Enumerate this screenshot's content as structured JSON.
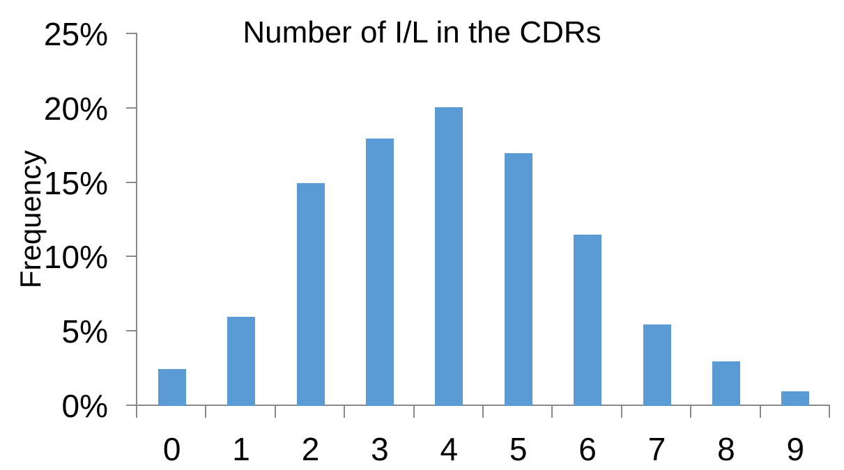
{
  "chart_data": {
    "type": "bar",
    "title": "Number of I/L in the CDRs",
    "xlabel": "",
    "ylabel": "Frequency",
    "categories": [
      "0",
      "1",
      "2",
      "3",
      "4",
      "5",
      "6",
      "7",
      "8",
      "9"
    ],
    "values": [
      2.5,
      6,
      15,
      18,
      20.1,
      17,
      11.5,
      5.5,
      3,
      1
    ],
    "value_unit": "percent",
    "ylim": [
      0,
      25
    ],
    "yticks": [
      {
        "value": 0,
        "label": "0%"
      },
      {
        "value": 5,
        "label": "5%"
      },
      {
        "value": 10,
        "label": "10%"
      },
      {
        "value": 15,
        "label": "15%"
      },
      {
        "value": 20,
        "label": "20%"
      },
      {
        "value": 25,
        "label": "25%"
      }
    ],
    "grid": false,
    "legend": "none",
    "colors": {
      "bar": "#5B9BD5",
      "axis": "#8A8A8A",
      "text": "#000000",
      "background": "#FFFFFF"
    }
  }
}
